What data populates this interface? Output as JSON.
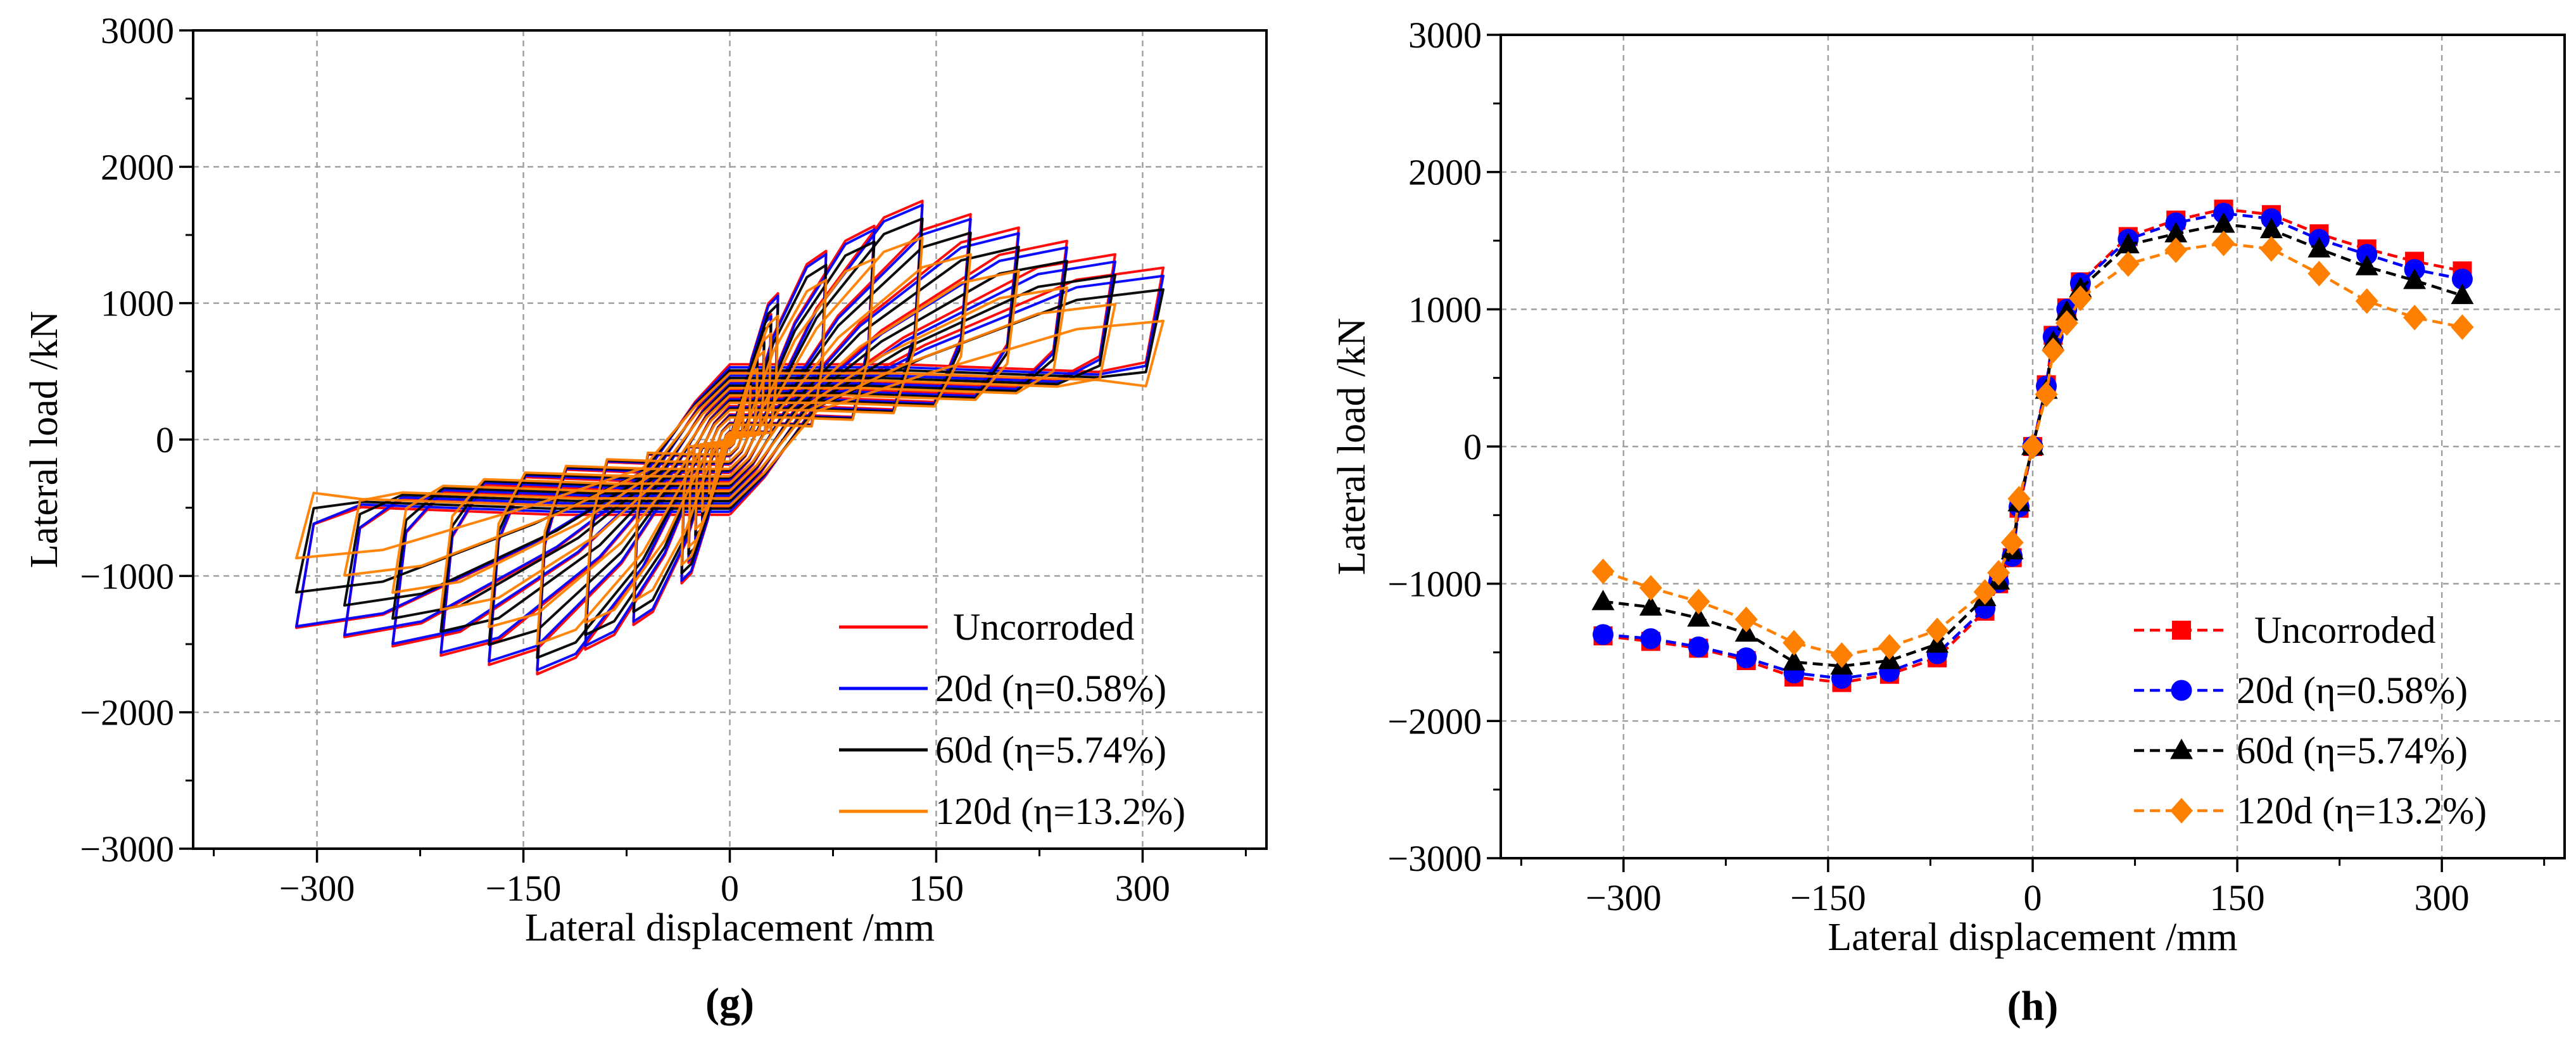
{
  "chart_data": [
    {
      "panel": "g",
      "type": "line",
      "subtype": "hysteresis",
      "title": "",
      "xlabel": "Lateral displacement /mm",
      "ylabel": "Lateral load /kN",
      "xlim": [
        -390,
        390
      ],
      "ylim": [
        -3000,
        3000
      ],
      "xticks": [
        -300,
        -150,
        0,
        150,
        300
      ],
      "yticks": [
        -3000,
        -2000,
        -1000,
        0,
        1000,
        2000,
        3000
      ],
      "grid": true,
      "legend_position": "bottom-right",
      "series": [
        {
          "name": "Uncorroded",
          "color": "#ff0000",
          "peak_pos": 1750,
          "peak_neg": -1720,
          "end_pos": 1260,
          "end_neg": -1380
        },
        {
          "name": "20d (η=0.58%)",
          "color": "#0000ff",
          "peak_pos": 1720,
          "peak_neg": -1690,
          "end_pos": 1200,
          "end_neg": -1370
        },
        {
          "name": "60d (η=5.74%)",
          "color": "#000000",
          "peak_pos": 1620,
          "peak_neg": -1600,
          "end_pos": 1100,
          "end_neg": -1120
        },
        {
          "name": "120d (η=13.2%)",
          "color": "#ff8000",
          "peak_pos": 1480,
          "peak_neg": -1500,
          "end_pos": 870,
          "end_neg": -870
        }
      ],
      "displacement_levels": [
        5,
        10,
        15,
        20,
        25,
        30,
        35,
        70,
        105,
        140,
        175,
        210,
        245,
        280,
        315
      ]
    },
    {
      "panel": "h",
      "type": "line",
      "subtype": "skeleton",
      "title": "",
      "xlabel": "Lateral displacement /mm",
      "ylabel": "Lateral load /kN",
      "xlim": [
        -390,
        390
      ],
      "ylim": [
        -3000,
        3000
      ],
      "xticks": [
        -300,
        -150,
        0,
        150,
        300
      ],
      "yticks": [
        -3000,
        -2000,
        -1000,
        0,
        1000,
        2000,
        3000
      ],
      "grid": true,
      "legend_position": "bottom-right",
      "x": [
        -315,
        -280,
        -245,
        -210,
        -175,
        -140,
        -105,
        -70,
        -35,
        -25,
        -15,
        -10,
        0,
        10,
        15,
        25,
        35,
        70,
        105,
        140,
        175,
        210,
        245,
        280,
        315
      ],
      "series": [
        {
          "name": "Uncorroded",
          "color": "#ff0000",
          "marker": "square",
          "values": [
            -1380,
            -1420,
            -1470,
            -1560,
            -1680,
            -1720,
            -1660,
            -1540,
            -1200,
            -1000,
            -810,
            -450,
            0,
            450,
            810,
            1010,
            1200,
            1530,
            1650,
            1730,
            1690,
            1550,
            1440,
            1350,
            1280
          ]
        },
        {
          "name": "20d (η=0.58%)",
          "color": "#0000ff",
          "marker": "circle",
          "values": [
            -1370,
            -1400,
            -1460,
            -1540,
            -1650,
            -1690,
            -1640,
            -1510,
            -1180,
            -990,
            -800,
            -440,
            0,
            440,
            800,
            1000,
            1190,
            1510,
            1630,
            1700,
            1660,
            1510,
            1400,
            1290,
            1220
          ]
        },
        {
          "name": "60d (η=5.74%)",
          "color": "#000000",
          "marker": "triangle",
          "values": [
            -1130,
            -1170,
            -1250,
            -1360,
            -1570,
            -1600,
            -1560,
            -1440,
            -1100,
            -980,
            -760,
            -410,
            0,
            410,
            760,
            980,
            1150,
            1470,
            1550,
            1620,
            1580,
            1440,
            1310,
            1210,
            1100
          ]
        },
        {
          "name": "120d (η=13.2%)",
          "color": "#ff8000",
          "marker": "diamond",
          "values": [
            -910,
            -1030,
            -1130,
            -1260,
            -1430,
            -1520,
            -1460,
            -1340,
            -1060,
            -920,
            -700,
            -380,
            0,
            380,
            700,
            900,
            1080,
            1330,
            1430,
            1480,
            1440,
            1260,
            1060,
            940,
            870
          ]
        }
      ]
    }
  ],
  "panel_labels": {
    "g": "(g)",
    "h": "(h)"
  },
  "legend_labels": [
    "Uncorroded",
    "20d (η=0.58%)",
    "60d (η=5.74%)",
    "120d (η=13.2%)"
  ]
}
